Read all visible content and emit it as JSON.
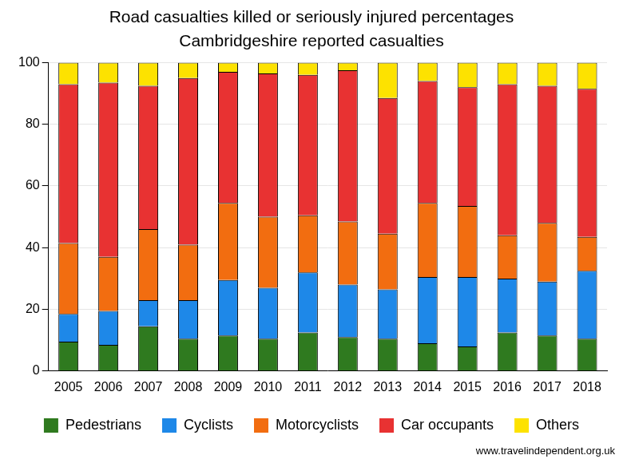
{
  "chart_data": {
    "type": "bar",
    "title": "Road casualties killed or seriously injured percentages",
    "subtitle": "Cambridgeshire reported casualties",
    "annotations": [
      "www.travelindependent.org.uk"
    ],
    "categories": [
      "2005",
      "2006",
      "2007",
      "2008",
      "2009",
      "2010",
      "2011",
      "2012",
      "2013",
      "2014",
      "2015",
      "2016",
      "2017",
      "2018"
    ],
    "series": [
      {
        "name": "Pedestrians",
        "color": "#2f7a1f",
        "values": [
          9.5,
          8.5,
          14.5,
          10.5,
          11.5,
          10.5,
          12.5,
          11,
          10.5,
          9,
          8,
          12.5,
          11.5,
          10.5
        ]
      },
      {
        "name": "Cyclists",
        "color": "#1e88e8",
        "values": [
          9,
          11,
          8.5,
          12.5,
          18,
          16.5,
          19.5,
          17,
          16,
          21.5,
          22.5,
          17.5,
          17.5,
          22
        ]
      },
      {
        "name": "Motorcyclists",
        "color": "#f26d10",
        "values": [
          23,
          17.5,
          23,
          18,
          25,
          23,
          18.5,
          20.5,
          18,
          24,
          23,
          14,
          19,
          11
        ]
      },
      {
        "name": "Car occupants",
        "color": "#e83232",
        "values": [
          51.5,
          56.5,
          46.5,
          54,
          42.5,
          46.5,
          45.5,
          49,
          44,
          39.5,
          38.5,
          49,
          44.5,
          48
        ]
      },
      {
        "name": "Others",
        "color": "#fde200",
        "values": [
          7,
          6.5,
          7.5,
          5,
          3,
          3.5,
          4,
          2.5,
          11.5,
          6,
          8,
          7,
          7.5,
          8.5
        ]
      }
    ],
    "ylim": [
      0,
      100
    ],
    "yticks": [
      0,
      20,
      40,
      60,
      80,
      100
    ],
    "stacked": true,
    "grid": true,
    "legend": "bottom",
    "data_labels": false
  }
}
